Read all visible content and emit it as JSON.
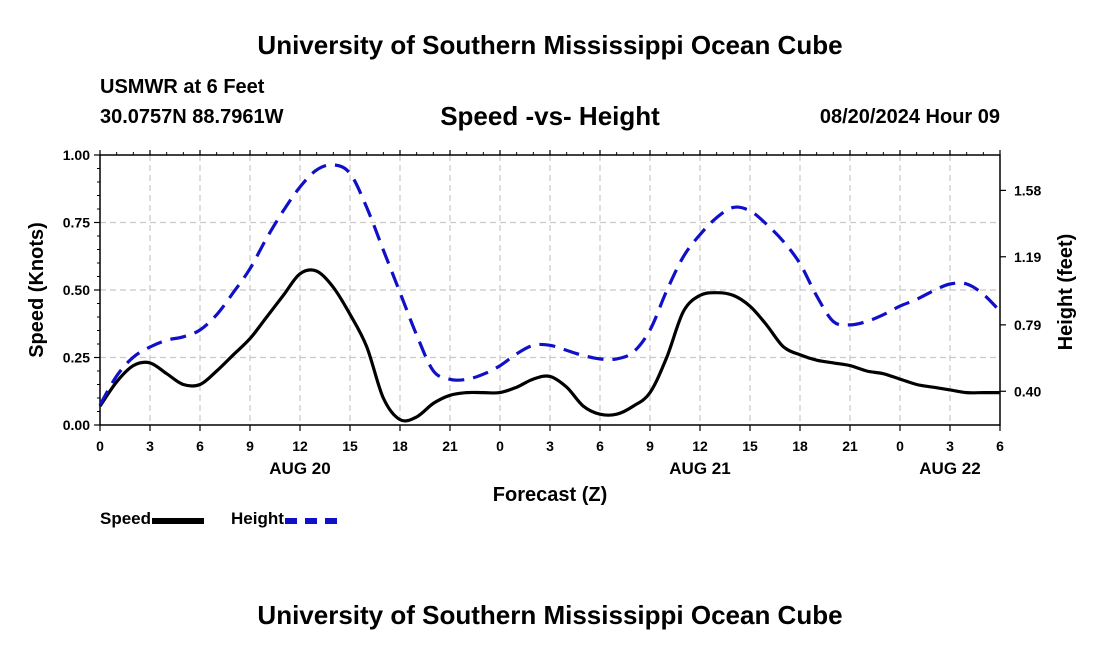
{
  "header": {
    "title": "University of Southern Mississippi Ocean Cube",
    "station": "USMWR at 6 Feet",
    "coords": "30.0757N  88.7961W",
    "subtitle": "Speed -vs- Height",
    "datetime": "08/20/2024 Hour 09"
  },
  "footer": {
    "title": "University of Southern Mississippi Ocean Cube"
  },
  "legend": {
    "speed_label": "Speed",
    "height_label": "Height"
  },
  "colors": {
    "speed": "#000000",
    "height": "#1010c8",
    "grid": "#c8c8c8"
  },
  "chart_data": {
    "type": "line",
    "title": "Speed -vs- Height",
    "xlabel": "Forecast (Z)",
    "ylabel": "Speed (Knots)",
    "y2label": "Height (feet)",
    "x_range": [
      0,
      54
    ],
    "ylim": [
      0,
      1.0
    ],
    "y2lim": [
      0.2018,
      1.7878
    ],
    "x_ticks": [
      0,
      3,
      6,
      9,
      12,
      15,
      18,
      21,
      24,
      27,
      30,
      33,
      36,
      39,
      42,
      45,
      48,
      51,
      54
    ],
    "x_tick_labels": [
      "0",
      "3",
      "6",
      "9",
      "12",
      "15",
      "18",
      "21",
      "0",
      "3",
      "6",
      "9",
      "12",
      "15",
      "18",
      "21",
      "0",
      "3",
      "6"
    ],
    "date_labels": [
      {
        "hour": 12,
        "label": "AUG 20"
      },
      {
        "hour": 36,
        "label": "AUG 21"
      },
      {
        "hour": 51,
        "label": "AUG 22"
      }
    ],
    "y_ticks": [
      0,
      0.25,
      0.5,
      0.75,
      1.0
    ],
    "y_tick_labels": [
      "0.00",
      "0.25",
      "0.50",
      "0.75",
      "1.00"
    ],
    "y2_ticks": [
      0.4,
      0.79,
      1.19,
      1.58
    ],
    "y2_tick_labels": [
      "0.40",
      "0.79",
      "1.19",
      "1.58"
    ],
    "grid": true,
    "series": [
      {
        "name": "Speed",
        "axis": "left",
        "style": "solid",
        "x": [
          0,
          1,
          2,
          3,
          4,
          5,
          6,
          7,
          8,
          9,
          10,
          11,
          12,
          13,
          14,
          15,
          16,
          17,
          18,
          19,
          20,
          21,
          22,
          23,
          24,
          25,
          26,
          27,
          28,
          29,
          30,
          31,
          32,
          33,
          34,
          35,
          36,
          37,
          38,
          39,
          40,
          41,
          42,
          43,
          44,
          45,
          46,
          47,
          48,
          49,
          50,
          51,
          52,
          53,
          54
        ],
        "values": [
          0.07,
          0.16,
          0.22,
          0.23,
          0.19,
          0.15,
          0.15,
          0.2,
          0.26,
          0.32,
          0.4,
          0.48,
          0.56,
          0.57,
          0.51,
          0.41,
          0.29,
          0.1,
          0.02,
          0.03,
          0.08,
          0.11,
          0.12,
          0.12,
          0.12,
          0.14,
          0.17,
          0.18,
          0.14,
          0.07,
          0.04,
          0.04,
          0.07,
          0.12,
          0.25,
          0.42,
          0.48,
          0.49,
          0.48,
          0.44,
          0.37,
          0.29,
          0.26,
          0.24,
          0.23,
          0.22,
          0.2,
          0.19,
          0.17,
          0.15,
          0.14,
          0.13,
          0.12,
          0.12,
          0.12
        ]
      },
      {
        "name": "Height",
        "axis": "right",
        "style": "dashed",
        "x": [
          0,
          1,
          2,
          3,
          4,
          5,
          6,
          7,
          8,
          9,
          10,
          11,
          12,
          13,
          14,
          15,
          16,
          17,
          18,
          19,
          20,
          21,
          22,
          23,
          24,
          25,
          26,
          27,
          28,
          29,
          30,
          31,
          32,
          33,
          34,
          35,
          36,
          37,
          38,
          39,
          40,
          41,
          42,
          43,
          44,
          45,
          46,
          47,
          48,
          49,
          50,
          51,
          52,
          53,
          54
        ],
        "values": [
          0.32,
          0.49,
          0.6,
          0.66,
          0.7,
          0.72,
          0.76,
          0.85,
          0.98,
          1.12,
          1.3,
          1.46,
          1.6,
          1.7,
          1.73,
          1.68,
          1.48,
          1.23,
          0.98,
          0.73,
          0.52,
          0.47,
          0.47,
          0.5,
          0.55,
          0.62,
          0.67,
          0.67,
          0.64,
          0.61,
          0.59,
          0.59,
          0.63,
          0.76,
          0.99,
          1.19,
          1.32,
          1.42,
          1.48,
          1.46,
          1.38,
          1.28,
          1.15,
          0.96,
          0.81,
          0.79,
          0.81,
          0.85,
          0.9,
          0.94,
          0.99,
          1.03,
          1.03,
          0.97,
          0.87
        ]
      }
    ]
  }
}
